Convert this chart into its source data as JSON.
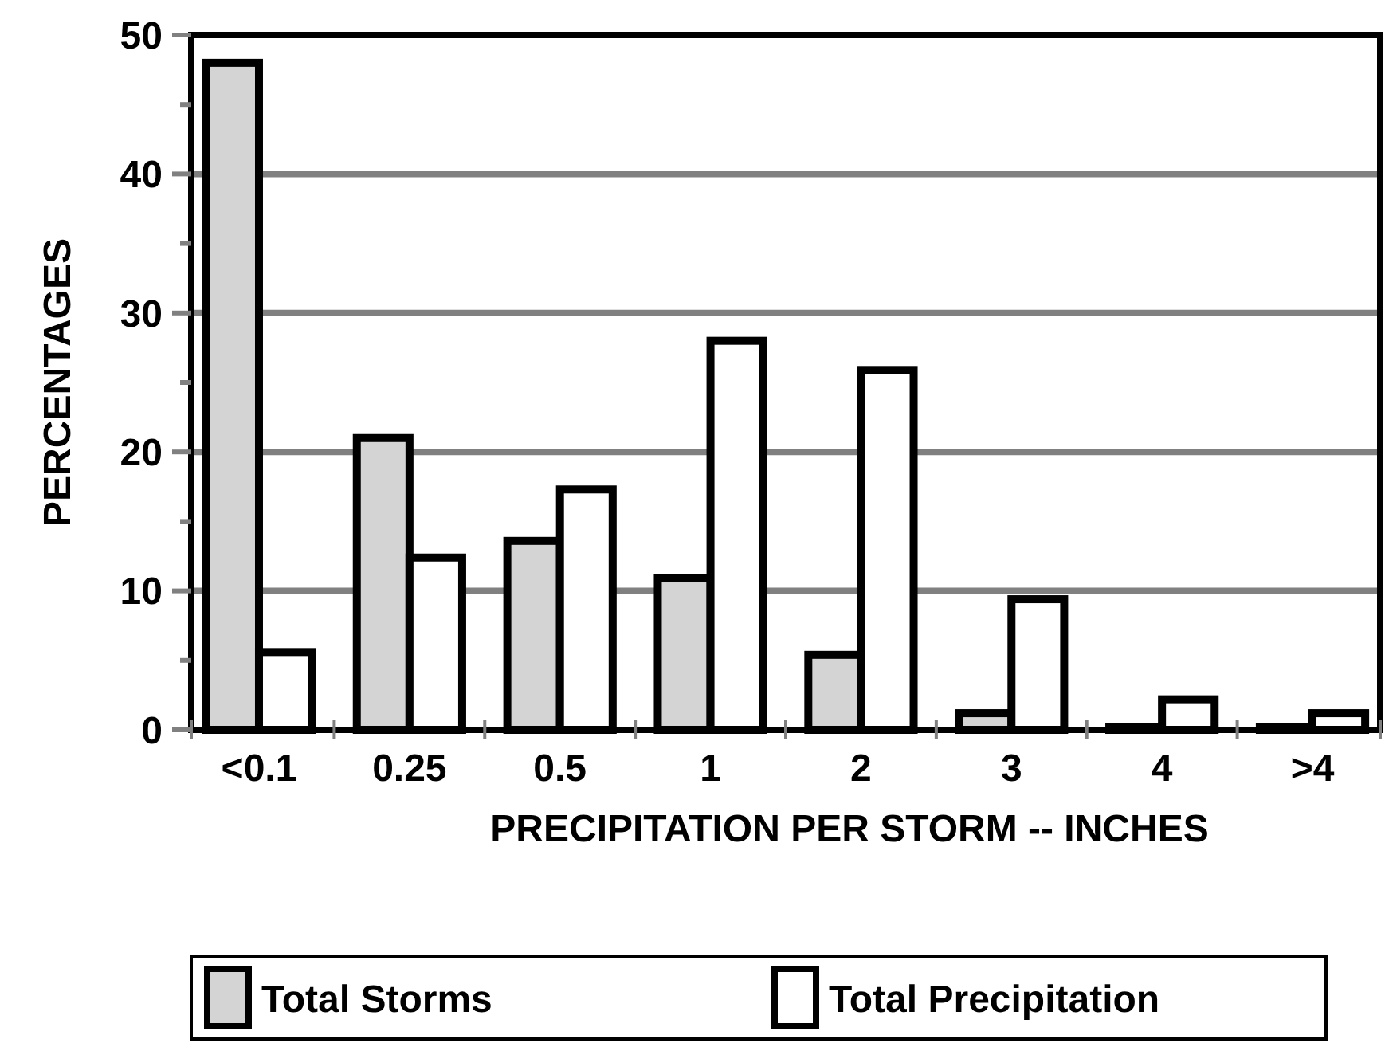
{
  "chart_data": {
    "type": "bar",
    "xlabel": "PRECIPITATION PER STORM -- INCHES",
    "ylabel": "PERCENTAGES",
    "categories": [
      "<0.1",
      "0.25",
      "0.5",
      "1",
      "2",
      "3",
      "4",
      ">4"
    ],
    "series": [
      {
        "name": "Total Storms",
        "color": "#d4d4d4",
        "values": [
          48,
          21,
          13.6,
          10.9,
          5.4,
          1.2,
          0.2,
          0.2
        ]
      },
      {
        "name": "Total Precipitation",
        "color": "#ffffff",
        "values": [
          5.6,
          12.4,
          17.3,
          28,
          25.9,
          9.4,
          2.2,
          1.2
        ]
      }
    ],
    "ylim": [
      0,
      50
    ],
    "yticks": [
      0,
      {
        "value": 5,
        "label": null
      },
      10,
      {
        "value": 15,
        "label": null
      },
      20,
      {
        "value": 25,
        "label": null
      },
      30,
      {
        "value": 35,
        "label": null
      },
      40,
      {
        "value": 45,
        "label": null
      },
      50
    ],
    "grid": "y",
    "legend": "bottom"
  }
}
